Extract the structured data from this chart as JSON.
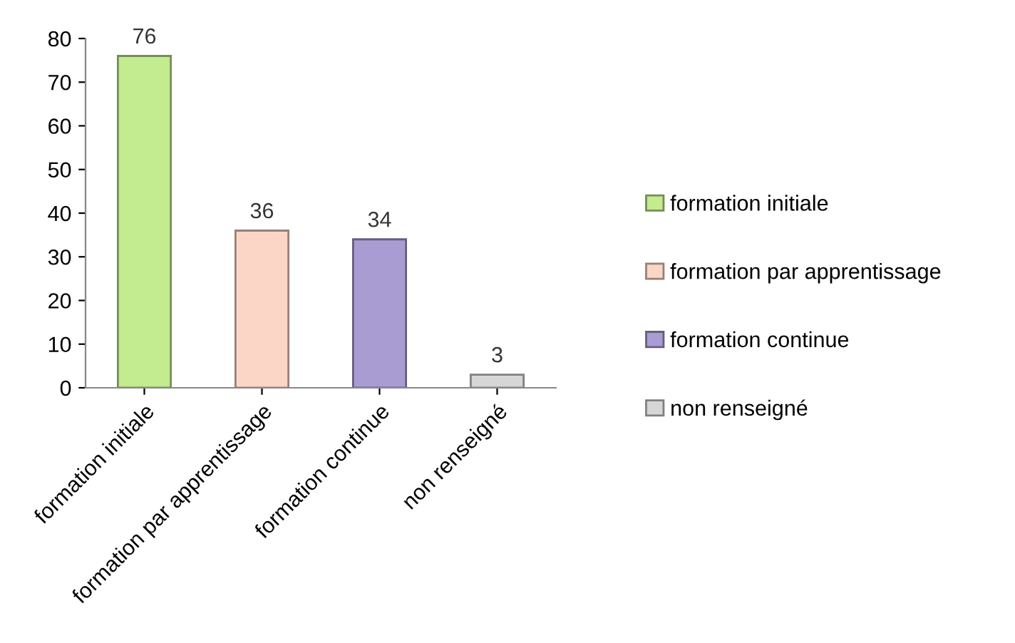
{
  "chart_data": {
    "type": "bar",
    "stacked": true,
    "categories": [
      "formation initiale",
      "formation par apprentissage",
      "formation continue",
      "non renseigné"
    ],
    "series": [
      {
        "name": "formation initiale",
        "color": "#c3eb8f",
        "values": [
          76,
          null,
          null,
          null
        ]
      },
      {
        "name": "formation par apprentissage",
        "color": "#fbd6c6",
        "values": [
          null,
          36,
          null,
          null
        ]
      },
      {
        "name": "formation continue",
        "color": "#a99cd3",
        "values": [
          null,
          null,
          34,
          null
        ]
      },
      {
        "name": "non renseigné",
        "color": "#d6d6d6",
        "values": [
          null,
          null,
          null,
          3
        ]
      }
    ],
    "ylim": [
      0,
      80
    ],
    "yticks": [
      0,
      10,
      20,
      30,
      40,
      50,
      60,
      70,
      80
    ],
    "data_labels": true,
    "grid": false,
    "legend": "right"
  }
}
